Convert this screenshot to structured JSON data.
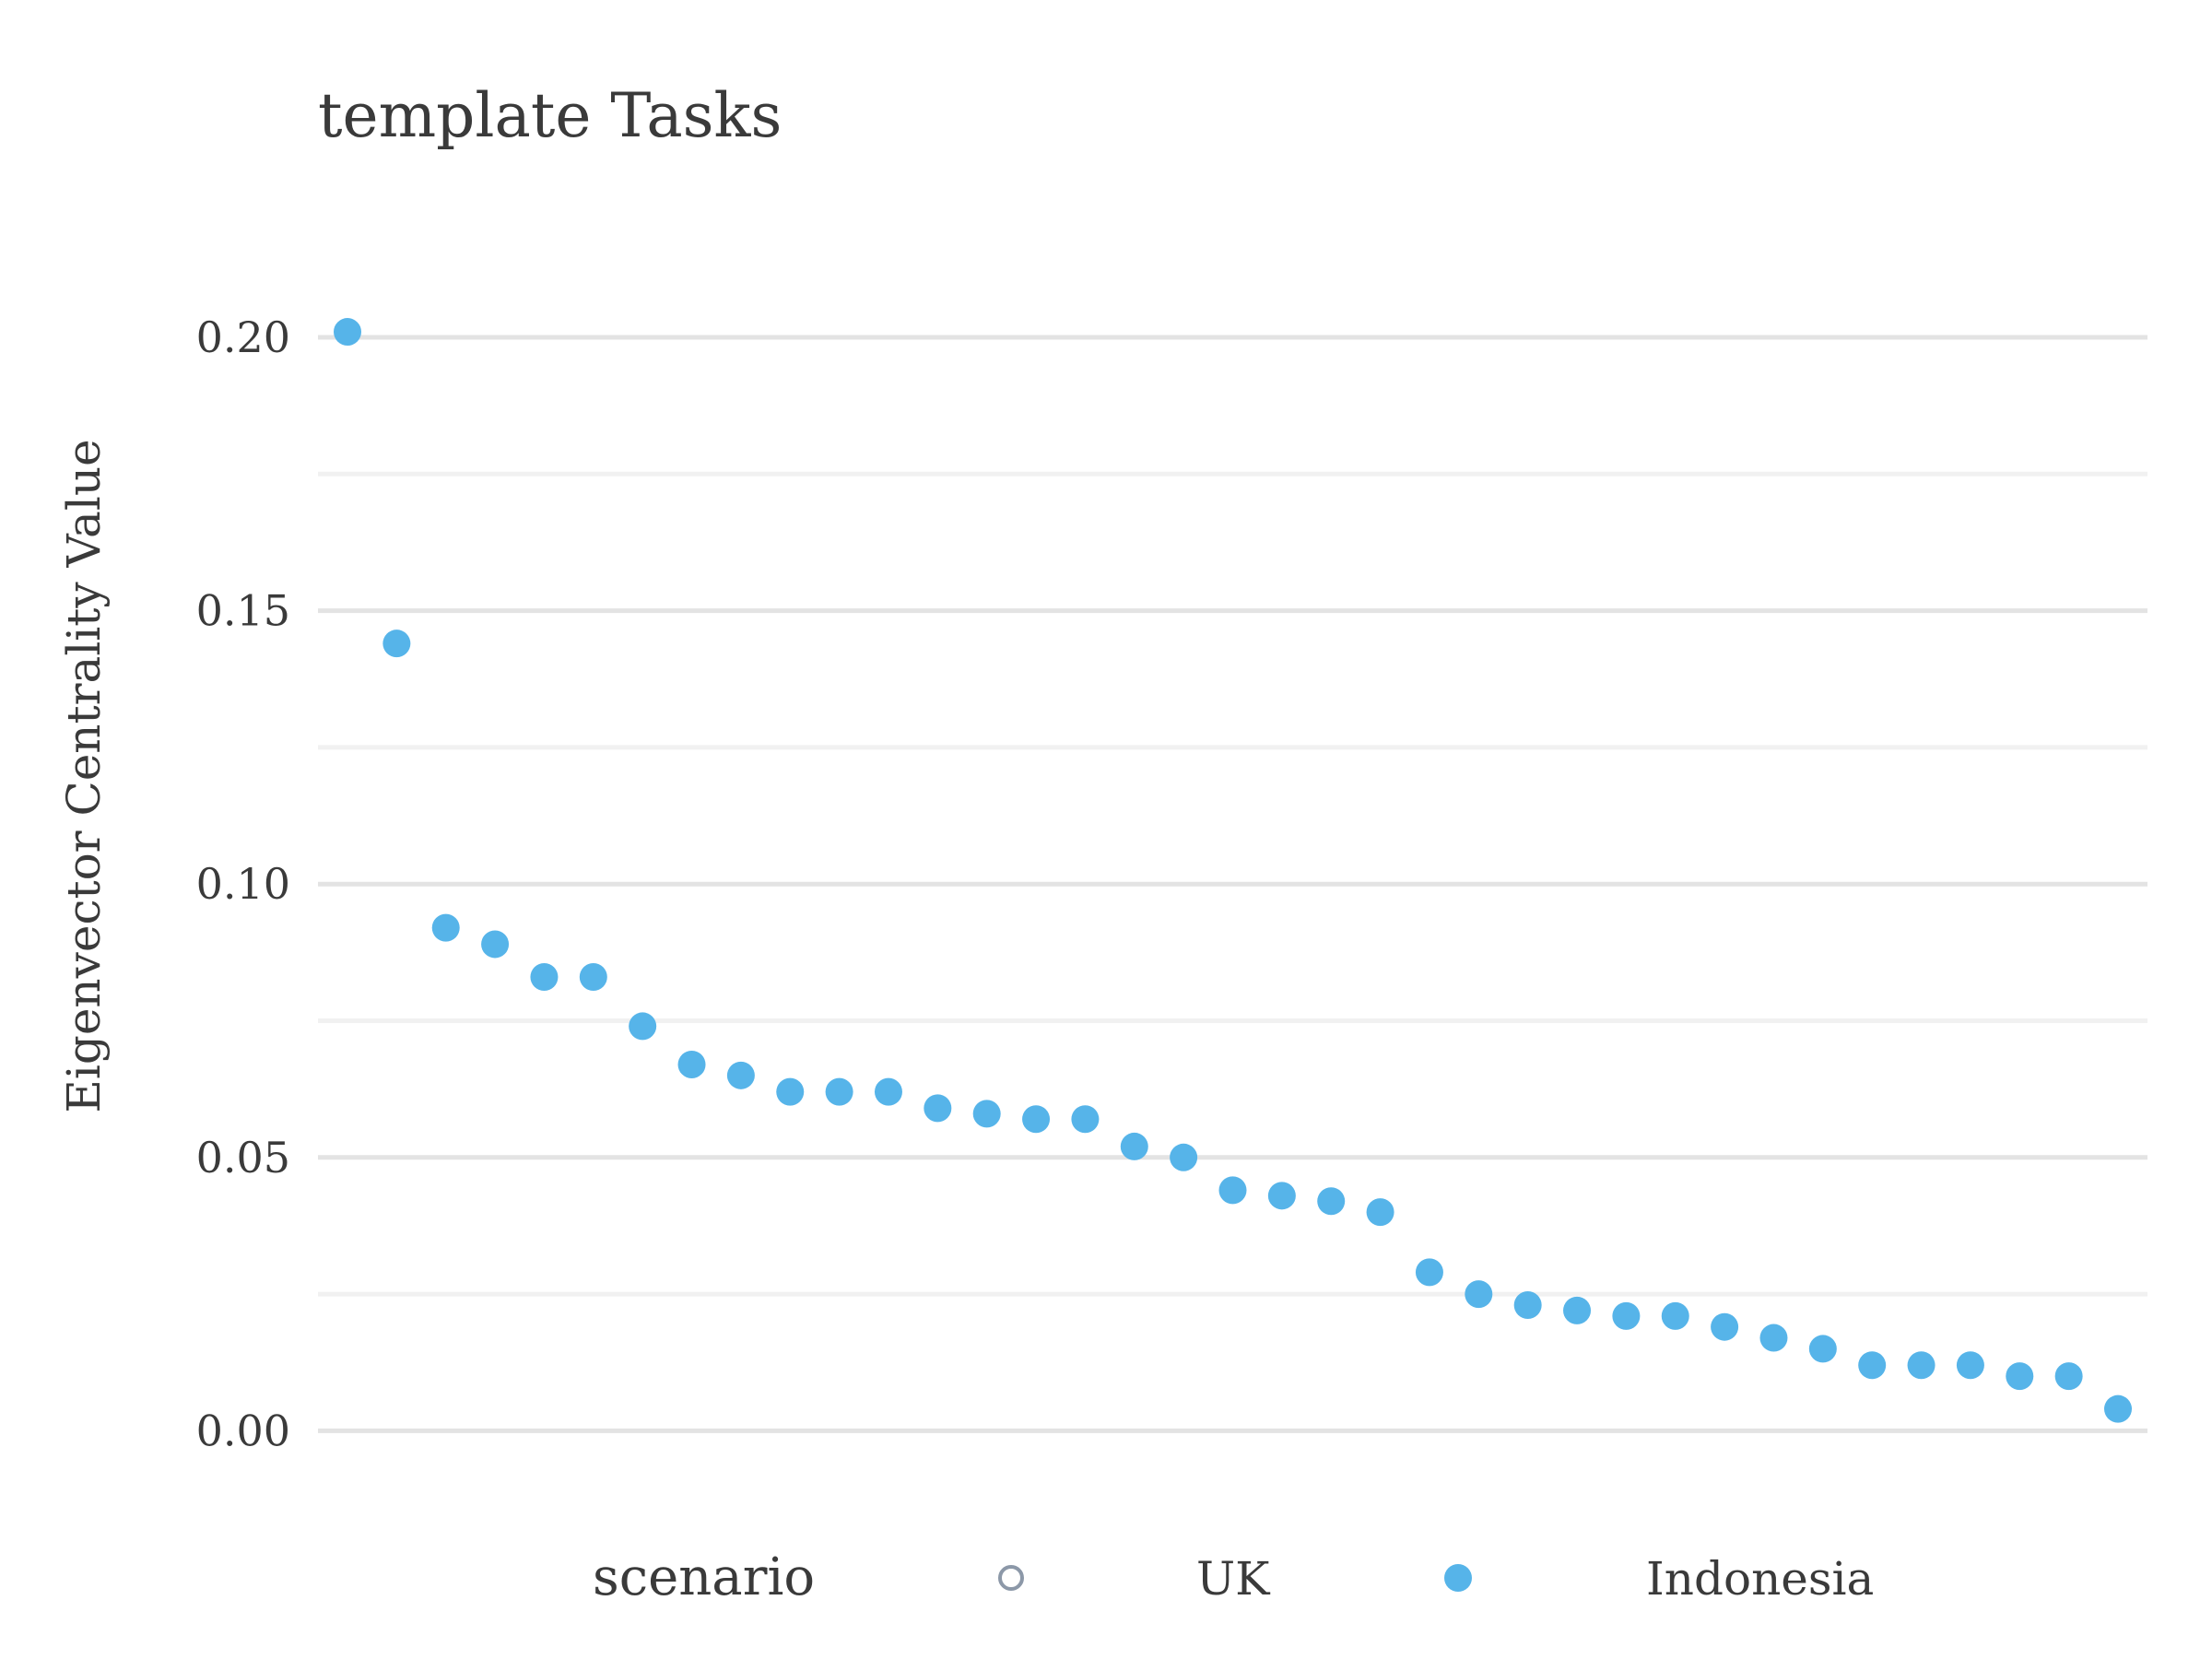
{
  "chart_data": {
    "type": "scatter",
    "title": "template Tasks",
    "xlabel": "",
    "ylabel": "Eigenvector Centrality Value",
    "ylim": [
      -0.006,
      0.215
    ],
    "yticks": [
      "0.00",
      "0.05",
      "0.10",
      "0.15",
      "0.20"
    ],
    "grid": true,
    "legend_position": "bottom",
    "legend_title": "scenario",
    "series": [
      {
        "name": "UK",
        "marker": "hollow-circle",
        "color": "#8c98a8",
        "values": []
      },
      {
        "name": "Indonesia",
        "marker": "filled-circle",
        "color": "#56b4e9",
        "values": [
          0.201,
          0.144,
          0.092,
          0.089,
          0.083,
          0.083,
          0.074,
          0.067,
          0.065,
          0.062,
          0.062,
          0.062,
          0.059,
          0.058,
          0.057,
          0.057,
          0.052,
          0.05,
          0.044,
          0.043,
          0.042,
          0.04,
          0.029,
          0.025,
          0.023,
          0.022,
          0.021,
          0.021,
          0.019,
          0.017,
          0.015,
          0.012,
          0.012,
          0.012,
          0.01,
          0.01,
          0.004
        ]
      }
    ]
  }
}
